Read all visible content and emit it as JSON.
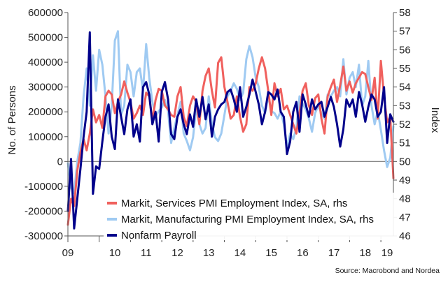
{
  "chart_data": {
    "type": "line",
    "title": "",
    "xlabel": "",
    "ylabel_left": "No. of Persons",
    "ylabel_right": "Index",
    "x_ticks": [
      "09",
      "10",
      "11",
      "12",
      "13",
      "14",
      "15",
      "16",
      "17",
      "18",
      "19"
    ],
    "x_range": [
      2009.0,
      2019.4
    ],
    "ylim_left": [
      -300000,
      600000
    ],
    "yticks_left": [
      -300000,
      -200000,
      -100000,
      0,
      100000,
      200000,
      300000,
      400000,
      500000,
      600000
    ],
    "ytick_labels_left": [
      "-300000",
      "-200000",
      "-100000",
      "0",
      "100000",
      "200000",
      "300000",
      "400000",
      "500000",
      "600000"
    ],
    "ylim_right": [
      46,
      58
    ],
    "yticks_right": [
      46,
      47,
      48,
      49,
      50,
      51,
      52,
      53,
      54,
      55,
      56,
      57,
      58
    ],
    "ytick_labels_right": [
      "46",
      "47",
      "48",
      "49",
      "50",
      "51",
      "52",
      "53",
      "54",
      "55",
      "56",
      "57",
      "58"
    ],
    "zero_line": 0,
    "legend_position": "bottom-center",
    "source": "Source: Macrobond and Nordea",
    "series": [
      {
        "name": "Markit, Services PMI Employment Index, SA, rhs",
        "axis": "right",
        "color": "#f0605d",
        "x": [
          2009.0,
          2009.1,
          2009.2,
          2009.3,
          2009.4,
          2009.5,
          2009.6,
          2009.7,
          2009.8,
          2009.9,
          2010.0,
          2010.1,
          2010.2,
          2010.3,
          2010.4,
          2010.5,
          2010.6,
          2010.7,
          2010.8,
          2010.9,
          2011.0,
          2011.1,
          2011.2,
          2011.3,
          2011.4,
          2011.5,
          2011.6,
          2011.7,
          2011.8,
          2011.9,
          2012.0,
          2012.1,
          2012.2,
          2012.3,
          2012.4,
          2012.5,
          2012.6,
          2012.7,
          2012.8,
          2012.9,
          2013.0,
          2013.1,
          2013.2,
          2013.3,
          2013.4,
          2013.5,
          2013.6,
          2013.7,
          2013.8,
          2013.9,
          2014.0,
          2014.1,
          2014.2,
          2014.3,
          2014.4,
          2014.5,
          2014.6,
          2014.7,
          2014.8,
          2014.9,
          2015.0,
          2015.1,
          2015.2,
          2015.3,
          2015.4,
          2015.5,
          2015.6,
          2015.7,
          2015.8,
          2015.9,
          2016.0,
          2016.1,
          2016.2,
          2016.3,
          2016.4,
          2016.5,
          2016.6,
          2016.7,
          2016.8,
          2016.9,
          2017.0,
          2017.1,
          2017.2,
          2017.3,
          2017.4,
          2017.5,
          2017.6,
          2017.7,
          2017.8,
          2017.9,
          2018.0,
          2018.1,
          2018.2,
          2018.3,
          2018.4,
          2018.5,
          2018.6,
          2018.7,
          2018.8,
          2018.9,
          2019.0,
          2019.1,
          2019.2,
          2019.3,
          2019.4
        ],
        "values": [
          46.6,
          48,
          47.6,
          49.5,
          50.5,
          51.2,
          50.6,
          51.5,
          52.8,
          52.1,
          52.5,
          51.8,
          53.5,
          53.8,
          53.6,
          52.6,
          53.2,
          53.6,
          54.3,
          53.7,
          53.2,
          52.3,
          52.6,
          53.0,
          52.5,
          53.7,
          53.5,
          52.2,
          53.3,
          53.9,
          53.8,
          53.0,
          52.8,
          52.5,
          52.4,
          53.5,
          54.0,
          52.4,
          51.9,
          53.0,
          53.5,
          53.2,
          52.0,
          53.8,
          54.6,
          55.0,
          53.8,
          52.9,
          55.3,
          55.6,
          54.0,
          53.2,
          52.3,
          52.5,
          53.5,
          52.4,
          51.6,
          52.0,
          54.0,
          53.8,
          54.2,
          55.0,
          55.6,
          55.0,
          53.8,
          52.5,
          54.2,
          53.5,
          53.9,
          52.8,
          53.0,
          52.5,
          52.0,
          51.5,
          52.6,
          53.8,
          54.2,
          53.0,
          52.5,
          53.4,
          53.6,
          52.3,
          51.5,
          53.5,
          54.0,
          54.4,
          53.2,
          54.1,
          55.1,
          53.8,
          54.3,
          53.7,
          54.2,
          54.5,
          54.8,
          54.7,
          54.0,
          53.3,
          54.5,
          52.3,
          55.4,
          53.5,
          52.1,
          52.4,
          49.1
        ]
      },
      {
        "name": "Markit, Manufacturing PMI Employment Index, SA, rhs",
        "axis": "right",
        "color": "#9fcaf2",
        "x": [
          2009.0,
          2009.1,
          2009.2,
          2009.3,
          2009.4,
          2009.5,
          2009.6,
          2009.7,
          2009.8,
          2009.9,
          2010.0,
          2010.1,
          2010.2,
          2010.3,
          2010.4,
          2010.5,
          2010.6,
          2010.7,
          2010.8,
          2010.9,
          2011.0,
          2011.1,
          2011.2,
          2011.3,
          2011.4,
          2011.5,
          2011.6,
          2011.7,
          2011.8,
          2011.9,
          2012.0,
          2012.1,
          2012.2,
          2012.3,
          2012.4,
          2012.5,
          2012.6,
          2012.7,
          2012.8,
          2012.9,
          2013.0,
          2013.1,
          2013.2,
          2013.3,
          2013.4,
          2013.5,
          2013.6,
          2013.7,
          2013.8,
          2013.9,
          2014.0,
          2014.1,
          2014.2,
          2014.3,
          2014.4,
          2014.5,
          2014.6,
          2014.7,
          2014.8,
          2014.9,
          2015.0,
          2015.1,
          2015.2,
          2015.3,
          2015.4,
          2015.5,
          2015.6,
          2015.7,
          2015.8,
          2015.9,
          2016.0,
          2016.1,
          2016.2,
          2016.3,
          2016.4,
          2016.5,
          2016.6,
          2016.7,
          2016.8,
          2016.9,
          2017.0,
          2017.1,
          2017.2,
          2017.3,
          2017.4,
          2017.5,
          2017.6,
          2017.7,
          2017.8,
          2017.9,
          2018.0,
          2018.1,
          2018.2,
          2018.3,
          2018.4,
          2018.5,
          2018.6,
          2018.7,
          2018.8,
          2018.9,
          2019.0,
          2019.1,
          2019.2,
          2019.3,
          2019.4
        ],
        "values": [
          49.9,
          48.6,
          48.3,
          50.0,
          51.0,
          53.5,
          55.0,
          53.0,
          55.7,
          53.8,
          56.0,
          55.2,
          53.5,
          51.5,
          53.0,
          56.5,
          57.0,
          52.5,
          53.0,
          55.2,
          54.8,
          53.5,
          54.8,
          55.0,
          53.8,
          56.3,
          54.5,
          53.2,
          52.4,
          52.7,
          52.9,
          53.3,
          52.7,
          51.0,
          51.8,
          52.5,
          53.2,
          51.5,
          51.1,
          50.6,
          51.3,
          52.9,
          52.0,
          51.5,
          51.8,
          53.5,
          52.0,
          51.3,
          51.1,
          51.5,
          52.5,
          53.5,
          53.8,
          54.2,
          53.9,
          53.3,
          53.7,
          55.5,
          56.2,
          55.6,
          54.5,
          54.0,
          53.0,
          52.6,
          53.5,
          52.7,
          52.6,
          52.3,
          52.7,
          52.0,
          50.8,
          51.5,
          51.2,
          51.8,
          53.5,
          53.1,
          52.8,
          52.3,
          51.6,
          52.6,
          53.0,
          52.6,
          52.3,
          53.6,
          53.5,
          53.8,
          54.0,
          53.5,
          55.5,
          53.6,
          54.5,
          54.8,
          54.0,
          55.2,
          53.0,
          53.5,
          55.4,
          53.0,
          52.0,
          52.7,
          51.7,
          50.6,
          49.7,
          50.2,
          51.9
        ]
      },
      {
        "name": "Nonfarm Payroll",
        "axis": "left",
        "color": "#00008b",
        "x": [
          2009.0,
          2009.1,
          2009.2,
          2009.3,
          2009.4,
          2009.5,
          2009.6,
          2009.7,
          2009.8,
          2009.9,
          2010.0,
          2010.1,
          2010.2,
          2010.3,
          2010.4,
          2010.5,
          2010.6,
          2010.7,
          2010.8,
          2010.9,
          2011.0,
          2011.1,
          2011.2,
          2011.3,
          2011.4,
          2011.5,
          2011.6,
          2011.7,
          2011.8,
          2011.9,
          2012.0,
          2012.1,
          2012.2,
          2012.3,
          2012.4,
          2012.5,
          2012.6,
          2012.7,
          2012.8,
          2012.9,
          2013.0,
          2013.1,
          2013.2,
          2013.3,
          2013.4,
          2013.5,
          2013.6,
          2013.7,
          2013.8,
          2013.9,
          2014.0,
          2014.1,
          2014.2,
          2014.3,
          2014.4,
          2014.5,
          2014.6,
          2014.7,
          2014.8,
          2014.9,
          2015.0,
          2015.1,
          2015.2,
          2015.3,
          2015.4,
          2015.5,
          2015.6,
          2015.7,
          2015.8,
          2015.9,
          2016.0,
          2016.1,
          2016.2,
          2016.3,
          2016.4,
          2016.5,
          2016.6,
          2016.7,
          2016.8,
          2016.9,
          2017.0,
          2017.1,
          2017.2,
          2017.3,
          2017.4,
          2017.5,
          2017.6,
          2017.7,
          2017.8,
          2017.9,
          2018.0,
          2018.1,
          2018.2,
          2018.3,
          2018.4,
          2018.5,
          2018.6,
          2018.7,
          2018.8,
          2018.9,
          2019.0,
          2019.1,
          2019.2,
          2019.3,
          2019.4
        ],
        "values": [
          -200000,
          10000,
          -270000,
          -150000,
          -30000,
          100000,
          200000,
          520000,
          -130000,
          -20000,
          -30000,
          80000,
          180000,
          230000,
          100000,
          50000,
          250000,
          180000,
          110000,
          210000,
          250000,
          100000,
          150000,
          80000,
          300000,
          320000,
          270000,
          150000,
          200000,
          80000,
          280000,
          320000,
          250000,
          110000,
          90000,
          180000,
          210000,
          150000,
          110000,
          190000,
          140000,
          250000,
          180000,
          260000,
          170000,
          230000,
          100000,
          180000,
          210000,
          230000,
          240000,
          280000,
          290000,
          250000,
          200000,
          300000,
          180000,
          220000,
          270000,
          330000,
          280000,
          230000,
          150000,
          200000,
          280000,
          270000,
          250000,
          290000,
          200000,
          180000,
          30000,
          80000,
          200000,
          240000,
          120000,
          270000,
          230000,
          180000,
          250000,
          210000,
          230000,
          240000,
          180000,
          220000,
          260000,
          220000,
          150000,
          60000,
          130000,
          250000,
          220000,
          250000,
          180000,
          280000,
          230000,
          160000,
          220000,
          270000,
          250000,
          180000,
          200000,
          300000,
          75000,
          190000,
          160000
        ]
      }
    ]
  }
}
